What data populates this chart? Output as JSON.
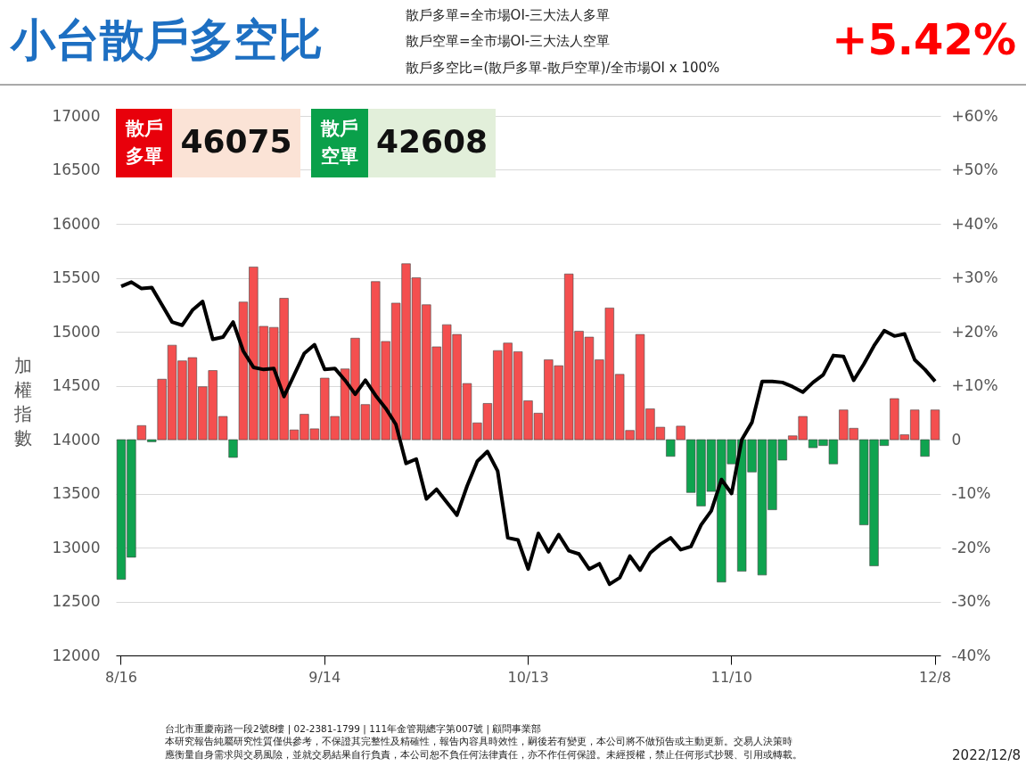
{
  "chart_data": {
    "type": "bar",
    "title": "小台散戶多空比",
    "ylabel": "加權指數",
    "categories": [
      "8/16",
      null,
      null,
      null,
      null,
      null,
      null,
      null,
      null,
      null,
      null,
      null,
      null,
      null,
      null,
      null,
      null,
      null,
      null,
      null,
      "9/14",
      null,
      null,
      null,
      null,
      null,
      null,
      null,
      null,
      null,
      null,
      null,
      null,
      null,
      null,
      null,
      null,
      null,
      null,
      null,
      "10/13",
      null,
      null,
      null,
      null,
      null,
      null,
      null,
      null,
      null,
      null,
      null,
      null,
      null,
      null,
      null,
      null,
      null,
      null,
      null,
      "11/10",
      null,
      null,
      null,
      null,
      null,
      null,
      null,
      null,
      null,
      null,
      null,
      null,
      null,
      null,
      null,
      null,
      null,
      null,
      null,
      "12/8"
    ],
    "series": [
      {
        "axis": "y2",
        "color": "#f44f4f",
        "values": [
          null,
          null,
          2.6,
          null,
          11.2,
          17.5,
          14.6,
          15.2,
          9.8,
          12.8,
          4.3,
          null,
          25.5,
          32.0,
          21.0,
          20.8,
          26.2,
          1.8,
          4.7,
          2.0,
          11.4,
          4.3,
          13.1,
          18.8,
          6.5,
          29.3,
          18.2,
          25.3,
          32.6,
          30.0,
          25.0,
          17.2,
          21.3,
          19.5,
          10.4,
          3.1,
          6.7,
          16.5,
          17.9,
          16.3,
          7.2,
          4.9,
          14.8,
          13.7,
          30.7,
          20.1,
          19.0,
          14.8,
          24.4,
          12.1,
          1.7,
          19.5,
          5.7,
          2.3,
          null,
          2.5,
          null,
          null,
          null,
          null,
          null,
          null,
          null,
          null,
          null,
          null,
          0.7,
          4.3,
          null,
          null,
          null,
          5.5,
          2.1,
          null,
          null,
          null,
          7.6,
          0.9,
          5.5,
          null,
          5.5
        ]
      },
      {
        "axis": "y2",
        "color": "#0fa34f",
        "values": [
          -25.9,
          -21.8,
          null,
          -0.4,
          null,
          null,
          null,
          null,
          null,
          null,
          null,
          -3.3,
          null,
          null,
          null,
          null,
          null,
          null,
          null,
          null,
          null,
          null,
          null,
          null,
          null,
          null,
          null,
          null,
          null,
          null,
          null,
          null,
          null,
          null,
          null,
          null,
          null,
          null,
          null,
          null,
          null,
          null,
          null,
          null,
          null,
          null,
          null,
          null,
          null,
          null,
          null,
          null,
          null,
          null,
          -3.1,
          null,
          -9.8,
          -12.3,
          -9.6,
          -26.4,
          -4.5,
          -24.4,
          -6.0,
          -25.1,
          -13.0,
          -3.8,
          null,
          null,
          -1.5,
          -1.1,
          -4.5,
          null,
          null,
          -15.8,
          -23.4,
          -1.1,
          null,
          null,
          null,
          -3.1,
          null
        ]
      },
      {
        "type": "line",
        "color": "#000000",
        "values": [
          15420,
          15460,
          15400,
          15410,
          15250,
          15090,
          15060,
          15200,
          15280,
          14930,
          14950,
          15090,
          14820,
          14670,
          14650,
          14660,
          14400,
          14600,
          14800,
          14880,
          14650,
          14660,
          14550,
          14420,
          14550,
          14410,
          14290,
          14140,
          13780,
          13820,
          13450,
          13540,
          13420,
          13300,
          13570,
          13800,
          13890,
          13710,
          13090,
          13070,
          12800,
          13130,
          12960,
          13120,
          12970,
          12940,
          12800,
          12850,
          12660,
          12720,
          12920,
          12790,
          12950,
          13030,
          13090,
          12980,
          13010,
          13210,
          13340,
          13630,
          13500,
          14000,
          14160,
          14540,
          14540,
          14530,
          14490,
          14440,
          14530,
          14600,
          14780,
          14770,
          14550,
          14700,
          14870,
          15010,
          14960,
          14980,
          14740,
          14650,
          14540
        ]
      }
    ],
    "ylim": [
      12000,
      17000
    ],
    "yticks": [
      12000,
      12500,
      13000,
      13500,
      14000,
      14500,
      15000,
      15500,
      16000,
      16500,
      17000
    ],
    "y2lim": [
      -40,
      60
    ],
    "y2ticks": [
      {
        "value": -40,
        "label": "-40%"
      },
      {
        "value": -30,
        "label": "-30%"
      },
      {
        "value": -20,
        "label": "-20%"
      },
      {
        "value": -10,
        "label": "-10%"
      },
      0,
      {
        "value": 10,
        "label": "+10%"
      },
      {
        "value": 20,
        "label": "+20%"
      },
      {
        "value": 30,
        "label": "+30%"
      },
      {
        "value": 40,
        "label": "+40%"
      },
      {
        "value": 50,
        "label": "+50%"
      },
      {
        "value": 60,
        "label": "+60%"
      }
    ],
    "grid": "y",
    "annotations": [
      "散戶多單=全市場OI-三大法人多單",
      "散戶空單=全市場OI-三大法人空單",
      "散戶多空比=(散戶多單-散戶空單)/全市場OI x 100%",
      "+5.42%",
      "散戶多單",
      "46075",
      "散戶空單",
      "42608",
      "台北市重慶南路一段2號8樓 | 02-2381-1799 | 111年金管期總字第007號 | 顧問事業部",
      "本研究報告純屬研究性質僅供參考，不保證其完整性及精確性，報告內容具時效性，嗣後若有變更，本公司將不做預告或主動更新。交易人決策時",
      "應衡量自身需求與交易風險，並就交易結果自行負責，本公司恕不負任何法律責任，亦不作任何保證。未經授權，禁止任何形式抄襲、引用或轉載。",
      "2022/12/8"
    ]
  }
}
